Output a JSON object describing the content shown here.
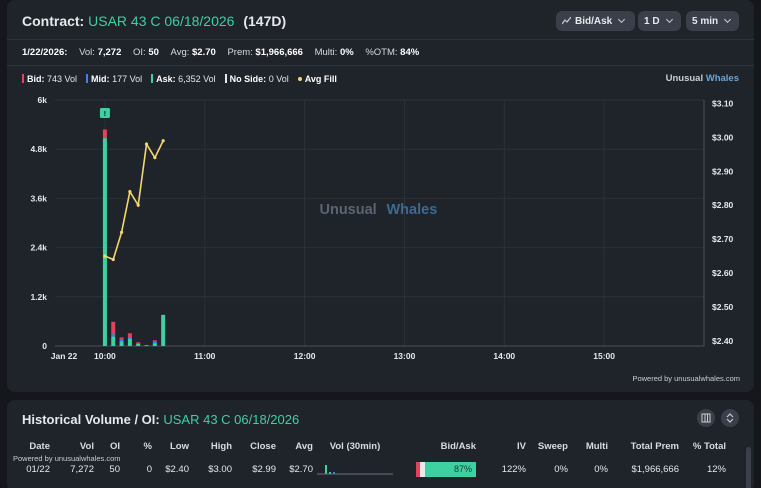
{
  "header": {
    "label": "Contract:",
    "contract": "USAR 43 C 06/18/2026",
    "dte": "(147D)",
    "controls": {
      "mode": "Bid/Ask",
      "range": "1 D",
      "interval": "5 min"
    }
  },
  "stats": {
    "date": "1/22/2026:",
    "vol_label": "Vol:",
    "vol": "7,272",
    "oi_label": "OI:",
    "oi": "50",
    "avg_label": "Avg:",
    "avg": "$2.70",
    "prem_label": "Prem:",
    "prem": "$1,966,666",
    "multi_label": "Multi:",
    "multi": "0%",
    "otm_label": "%OTM:",
    "otm": "84%"
  },
  "legend": {
    "bid_label": "Bid:",
    "bid": "743 Vol",
    "mid_label": "Mid:",
    "mid": "177 Vol",
    "ask_label": "Ask:",
    "ask": "6,352 Vol",
    "noside_label": "No Side:",
    "noside": "0 Vol",
    "avgfill_label": "Avg Fill"
  },
  "brand": {
    "part1": "Unusual",
    "part2": "Whales"
  },
  "powered_by": "Powered by unusualwhales.com",
  "colors": {
    "bid": "#e0435a",
    "mid": "#3b82f6",
    "ask": "#3fd0a2",
    "noside": "#e6e8ec",
    "avg_fill": "#f5d76e",
    "accent": "#3fd0a2"
  },
  "chart_data": {
    "type": "bar",
    "x_tick_labels": [
      "Jan 22",
      "10:00",
      "11:00",
      "12:00",
      "13:00",
      "14:00",
      "15:00"
    ],
    "y_left_ticks": [
      "0",
      "1.2k",
      "2.4k",
      "3.6k",
      "4.8k",
      "6k"
    ],
    "y_right_ticks": [
      "$2.40",
      "$2.50",
      "$2.60",
      "$2.70",
      "$2.80",
      "$2.90",
      "$3.00",
      "$3.10"
    ],
    "ylim_volume": [
      0,
      6000
    ],
    "ylim_price": [
      2.385,
      3.11
    ],
    "grid": true,
    "marker_label": "!",
    "bars_minutes_from_0930": [
      30,
      35,
      40,
      45,
      50,
      55,
      60,
      65,
      70
    ],
    "series": [
      {
        "name": "Ask",
        "values": [
          5070,
          230,
          110,
          180,
          60,
          20,
          70,
          760,
          0
        ]
      },
      {
        "name": "Mid",
        "values": [
          0,
          60,
          40,
          40,
          10,
          0,
          30,
          0,
          0
        ]
      },
      {
        "name": "Bid",
        "values": [
          210,
          300,
          60,
          90,
          20,
          0,
          40,
          0,
          0
        ]
      }
    ],
    "avg_fill": {
      "minutes_from_0930": [
        30,
        35,
        40,
        45,
        50,
        55,
        60,
        65
      ],
      "values": [
        2.65,
        2.64,
        2.72,
        2.84,
        2.8,
        2.98,
        2.94,
        2.99
      ]
    }
  },
  "historical": {
    "title": "Historical Volume / OI:",
    "contract": "USAR 43 C 06/18/2026",
    "powered_by": "Powered by unusualwhales.com",
    "columns": [
      "Date",
      "Vol",
      "OI",
      "%",
      "Low",
      "High",
      "Close",
      "Avg",
      "Vol (30min)",
      "Bid/Ask",
      "IV",
      "Sweep",
      "Multi",
      "Total Prem",
      "% Total"
    ],
    "rows": [
      {
        "date": "01/22",
        "vol": "7,272",
        "oi": "50",
        "pct": "0",
        "low": "$2.40",
        "high": "$3.00",
        "close": "$2.99",
        "avg": "$2.70",
        "bidask_pct": "87%",
        "iv": "122%",
        "sweep": "0%",
        "multi": "0%",
        "total_prem": "$1,966,666",
        "pct_total": "12%"
      }
    ]
  }
}
